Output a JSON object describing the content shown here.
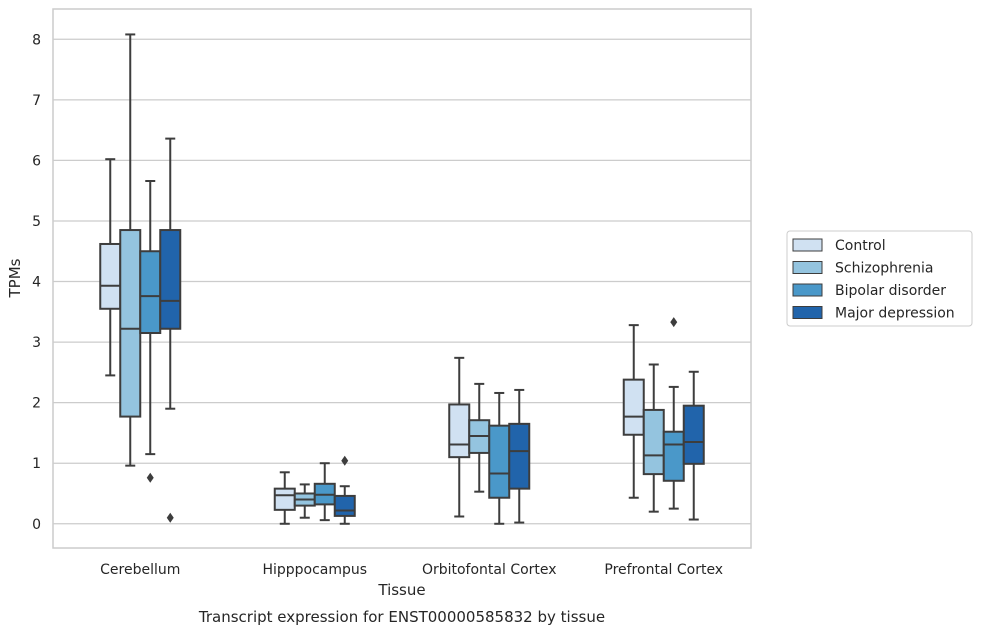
{
  "chart_data": {
    "type": "box",
    "caption": "Transcript expression for ENST00000585832 by tissue",
    "xlabel": "Tissue",
    "ylabel": "TPMs",
    "ylim": [
      -0.4,
      8.5
    ],
    "yticks": [
      0,
      1,
      2,
      3,
      4,
      5,
      6,
      7,
      8
    ],
    "grid": "horizontal",
    "legend_position": "right",
    "categories": [
      "Cerebellum",
      "Hipppocampus",
      "Orbitofontal Cortex",
      "Prefrontal Cortex"
    ],
    "series": [
      {
        "name": "Control",
        "color": "#d0e1f2",
        "boxes": [
          {
            "whisker_low": 2.45,
            "q1": 3.55,
            "median": 3.93,
            "q3": 4.62,
            "whisker_high": 6.02,
            "outliers": []
          },
          {
            "whisker_low": 0.0,
            "q1": 0.23,
            "median": 0.47,
            "q3": 0.58,
            "whisker_high": 0.85,
            "outliers": []
          },
          {
            "whisker_low": 0.12,
            "q1": 1.1,
            "median": 1.31,
            "q3": 1.97,
            "whisker_high": 2.74,
            "outliers": []
          },
          {
            "whisker_low": 0.43,
            "q1": 1.47,
            "median": 1.77,
            "q3": 2.38,
            "whisker_high": 3.28,
            "outliers": []
          }
        ]
      },
      {
        "name": "Schizophrenia",
        "color": "#94c4df",
        "boxes": [
          {
            "whisker_low": 0.96,
            "q1": 1.77,
            "median": 3.22,
            "q3": 4.85,
            "whisker_high": 8.08,
            "outliers": []
          },
          {
            "whisker_low": 0.1,
            "q1": 0.3,
            "median": 0.4,
            "q3": 0.5,
            "whisker_high": 0.65,
            "outliers": []
          },
          {
            "whisker_low": 0.53,
            "q1": 1.17,
            "median": 1.45,
            "q3": 1.71,
            "whisker_high": 2.31,
            "outliers": []
          },
          {
            "whisker_low": 0.2,
            "q1": 0.82,
            "median": 1.13,
            "q3": 1.88,
            "whisker_high": 2.63,
            "outliers": []
          }
        ]
      },
      {
        "name": "Bipolar disorder",
        "color": "#4a98c9",
        "boxes": [
          {
            "whisker_low": 1.15,
            "q1": 3.15,
            "median": 3.76,
            "q3": 4.5,
            "whisker_high": 5.66,
            "outliers": [
              0.76
            ]
          },
          {
            "whisker_low": 0.06,
            "q1": 0.32,
            "median": 0.48,
            "q3": 0.66,
            "whisker_high": 1.0,
            "outliers": []
          },
          {
            "whisker_low": 0.0,
            "q1": 0.43,
            "median": 0.83,
            "q3": 1.62,
            "whisker_high": 2.16,
            "outliers": []
          },
          {
            "whisker_low": 0.25,
            "q1": 0.71,
            "median": 1.31,
            "q3": 1.52,
            "whisker_high": 2.26,
            "outliers": [
              3.33
            ]
          }
        ]
      },
      {
        "name": "Major depression",
        "color": "#2164ab",
        "boxes": [
          {
            "whisker_low": 1.9,
            "q1": 3.22,
            "median": 3.68,
            "q3": 4.85,
            "whisker_high": 6.36,
            "outliers": [
              0.1
            ]
          },
          {
            "whisker_low": 0.0,
            "q1": 0.13,
            "median": 0.22,
            "q3": 0.46,
            "whisker_high": 0.62,
            "outliers": [
              1.04
            ]
          },
          {
            "whisker_low": 0.02,
            "q1": 0.58,
            "median": 1.2,
            "q3": 1.65,
            "whisker_high": 2.21,
            "outliers": []
          },
          {
            "whisker_low": 0.07,
            "q1": 0.99,
            "median": 1.35,
            "q3": 1.95,
            "whisker_high": 2.51,
            "outliers": []
          }
        ]
      }
    ]
  }
}
